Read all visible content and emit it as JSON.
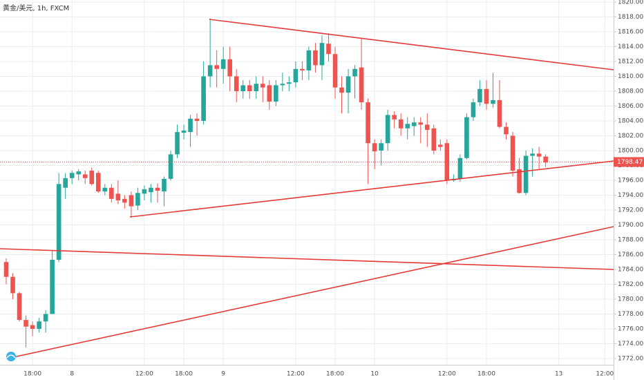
{
  "chart_data": {
    "type": "candlestick",
    "title": "黄金/美元, 1h, FXCM",
    "categories": [
      null,
      null,
      null,
      null,
      "18:00",
      null,
      null,
      null,
      null,
      null,
      "8",
      null,
      null,
      null,
      null,
      null,
      null,
      null,
      null,
      null,
      null,
      "12:00",
      null,
      null,
      null,
      null,
      null,
      "18:00",
      null,
      null,
      null,
      null,
      null,
      "9",
      null,
      null,
      null,
      null,
      null,
      null,
      null,
      null,
      null,
      null,
      "12:00",
      null,
      null,
      null,
      null,
      null,
      "18:00",
      null,
      null,
      null,
      null,
      null,
      "10",
      null,
      null,
      null,
      null,
      null,
      null,
      null,
      null,
      null,
      null,
      "12:00",
      null,
      null,
      null,
      null,
      null,
      "18:00",
      null,
      null,
      null,
      null,
      null,
      null,
      null,
      null,
      null,
      null,
      "13",
      null,
      null,
      null,
      null,
      null,
      null,
      "12:00"
    ],
    "open": [
      1785,
      1783,
      1780.8,
      1777.2,
      1776.5,
      1776,
      1777,
      1778,
      1785.3,
      1795,
      1796.3,
      1796.8,
      1796.8,
      1797.3,
      1797,
      1794.5,
      1795,
      1794.2,
      1793.5,
      1794,
      1792.6,
      1794.2,
      1794.4,
      1795,
      1794.5,
      1796.2,
      1799.5,
      1802.4,
      1802.5,
      1804.3,
      1804,
      1810,
      1811.5,
      1811,
      1812.3,
      1810,
      1808,
      1808.8,
      1808,
      1809,
      1808.8,
      1806.6,
      1808.8,
      1809,
      1809.2,
      1811,
      1810.8,
      1813.5,
      1811.5,
      1814.4,
      1813,
      1808.5,
      1807.8,
      1810,
      1811.2,
      1806.5,
      1801,
      1800,
      1801,
      1804.8,
      1804.2,
      1803,
      1803.3,
      1803.8,
      1803.5,
      1803,
      1800.8,
      1801,
      1796,
      1796.2,
      1799,
      1804.5,
      1806.5,
      1808.3,
      1806.3,
      1806.8,
      1803.2,
      1802,
      1797.5,
      1794.3,
      1799.3,
      1799.6,
      1799.2,
      null,
      null,
      null,
      null,
      null,
      null,
      null,
      null,
      null
    ],
    "high": [
      1785.5,
      1783.5,
      1781,
      1777.8,
      1777,
      1777.5,
      1778.5,
      1786.5,
      1797,
      1797,
      1797.3,
      1797.5,
      1797.3,
      1797.7,
      1797.3,
      1795.5,
      1795.5,
      1796,
      1794,
      1794.5,
      1795,
      1795.3,
      1795.5,
      1795.6,
      1796.5,
      1800,
      1803.5,
      1803.5,
      1804.8,
      1805,
      1812,
      1817.8,
      1813.5,
      1814,
      1814,
      1811,
      1809.5,
      1809.5,
      1810,
      1810,
      1809.5,
      1809.5,
      1810.5,
      1810,
      1812,
      1812,
      1814,
      1814.5,
      1815.5,
      1815.8,
      1814,
      1810,
      1811,
      1811.5,
      1815.2,
      1807,
      1801.5,
      1801.5,
      1805.5,
      1805.3,
      1805,
      1804.5,
      1804.5,
      1804.5,
      1805,
      1803.5,
      1801.5,
      1801.5,
      1796.8,
      1799.5,
      1805,
      1807,
      1809.5,
      1809.5,
      1810.5,
      1809.5,
      1803.8,
      1802.5,
      1799,
      1800,
      1800.3,
      1800.5,
      1799.5,
      null,
      null,
      null,
      null,
      null,
      null,
      null,
      null,
      null
    ],
    "low": [
      1782,
      1780,
      1777,
      1773.5,
      1775,
      1775.5,
      1775.5,
      1778,
      1785,
      1793.5,
      1795.5,
      1796,
      1795.5,
      1795.3,
      1794.3,
      1794,
      1793,
      1792.8,
      1792.2,
      1791,
      1792,
      1793.3,
      1793,
      1793,
      1792.5,
      1796,
      1799,
      1801.5,
      1800.5,
      1802,
      1803.5,
      1808.5,
      1808.5,
      1809,
      1808,
      1806.5,
      1807,
      1807,
      1807,
      1806.5,
      1805.5,
      1806,
      1808,
      1808,
      1808.5,
      1809.5,
      1809.5,
      1810.5,
      1809.5,
      1812,
      1807,
      1805,
      1805,
      1807,
      1805.5,
      1795.5,
      1797.5,
      1798,
      1800,
      1803,
      1802,
      1801.5,
      1802,
      1801,
      1800.5,
      1799.5,
      1800,
      1795.5,
      1795.8,
      1795.8,
      1798.8,
      1804,
      1806,
      1805.5,
      1805.8,
      1803,
      1801.5,
      1796.5,
      1794.2,
      1794,
      1796.5,
      1797.5,
      1797.8,
      null,
      null,
      null,
      null,
      null,
      null,
      null,
      null,
      null
    ],
    "close": [
      1783,
      1780.8,
      1777.2,
      1776.3,
      1776,
      1777,
      1778,
      1785.3,
      1795.5,
      1796.3,
      1797,
      1797.2,
      1796.3,
      1795.5,
      1794.5,
      1795,
      1793.5,
      1793.3,
      1793,
      1792.5,
      1794.3,
      1794.8,
      1795,
      1794.6,
      1796.2,
      1799.5,
      1802.5,
      1802.7,
      1804.3,
      1804,
      1810,
      1811.5,
      1811,
      1812.3,
      1810,
      1808,
      1808.8,
      1808,
      1809,
      1808.5,
      1806.6,
      1808.8,
      1809,
      1809.2,
      1811,
      1810.8,
      1813.5,
      1811.5,
      1814.5,
      1813,
      1808.5,
      1807.8,
      1810,
      1811,
      1806.5,
      1801,
      1799.9,
      1801,
      1804.8,
      1804.2,
      1803,
      1803.6,
      1803.8,
      1803.5,
      1802.8,
      1800,
      1800.5,
      1796,
      1796.2,
      1799,
      1804.5,
      1806.5,
      1808.3,
      1806.3,
      1806.8,
      1803.2,
      1802.2,
      1797.3,
      1794.3,
      1799.3,
      1799.6,
      1799.2,
      1798.4,
      null,
      null,
      null,
      null,
      null,
      null,
      null,
      null,
      null
    ],
    "up_color": "#26a69a",
    "down_color": "#ef5350",
    "last_price": 1798.47,
    "ylim": [
      1771.16,
      1820.28
    ],
    "yticks": [
      {
        "value": 1772,
        "label": "1772.00"
      },
      {
        "value": 1774,
        "label": "1774.00"
      },
      {
        "value": 1776,
        "label": "1776.00"
      },
      {
        "value": 1778,
        "label": "1778.00"
      },
      {
        "value": 1780,
        "label": "1780.00"
      },
      {
        "value": 1782,
        "label": "1782.00"
      },
      {
        "value": 1784,
        "label": "1784.00"
      },
      {
        "value": 1786,
        "label": "1786.00"
      },
      {
        "value": 1788,
        "label": "1788.00"
      },
      {
        "value": 1790,
        "label": "1790.00"
      },
      {
        "value": 1792,
        "label": "1792.00"
      },
      {
        "value": 1794,
        "label": "1794.00"
      },
      {
        "value": 1796,
        "label": "1796.00"
      },
      {
        "value": 1798,
        "label": "1798.00"
      },
      {
        "value": 1800,
        "label": "1800.00"
      },
      {
        "value": 1802,
        "label": "1802.00"
      },
      {
        "value": 1804,
        "label": "1804.00"
      },
      {
        "value": 1806,
        "label": "1806.00"
      },
      {
        "value": 1808,
        "label": "1808.00"
      },
      {
        "value": 1810,
        "label": "1810.00"
      },
      {
        "value": 1812,
        "label": "1812.00"
      },
      {
        "value": 1814,
        "label": "1814.00"
      },
      {
        "value": 1816,
        "label": "1816.00"
      },
      {
        "value": 1818,
        "label": "1818.00"
      },
      {
        "value": 1820,
        "label": "1820.00"
      }
    ],
    "grid": true
  }
}
